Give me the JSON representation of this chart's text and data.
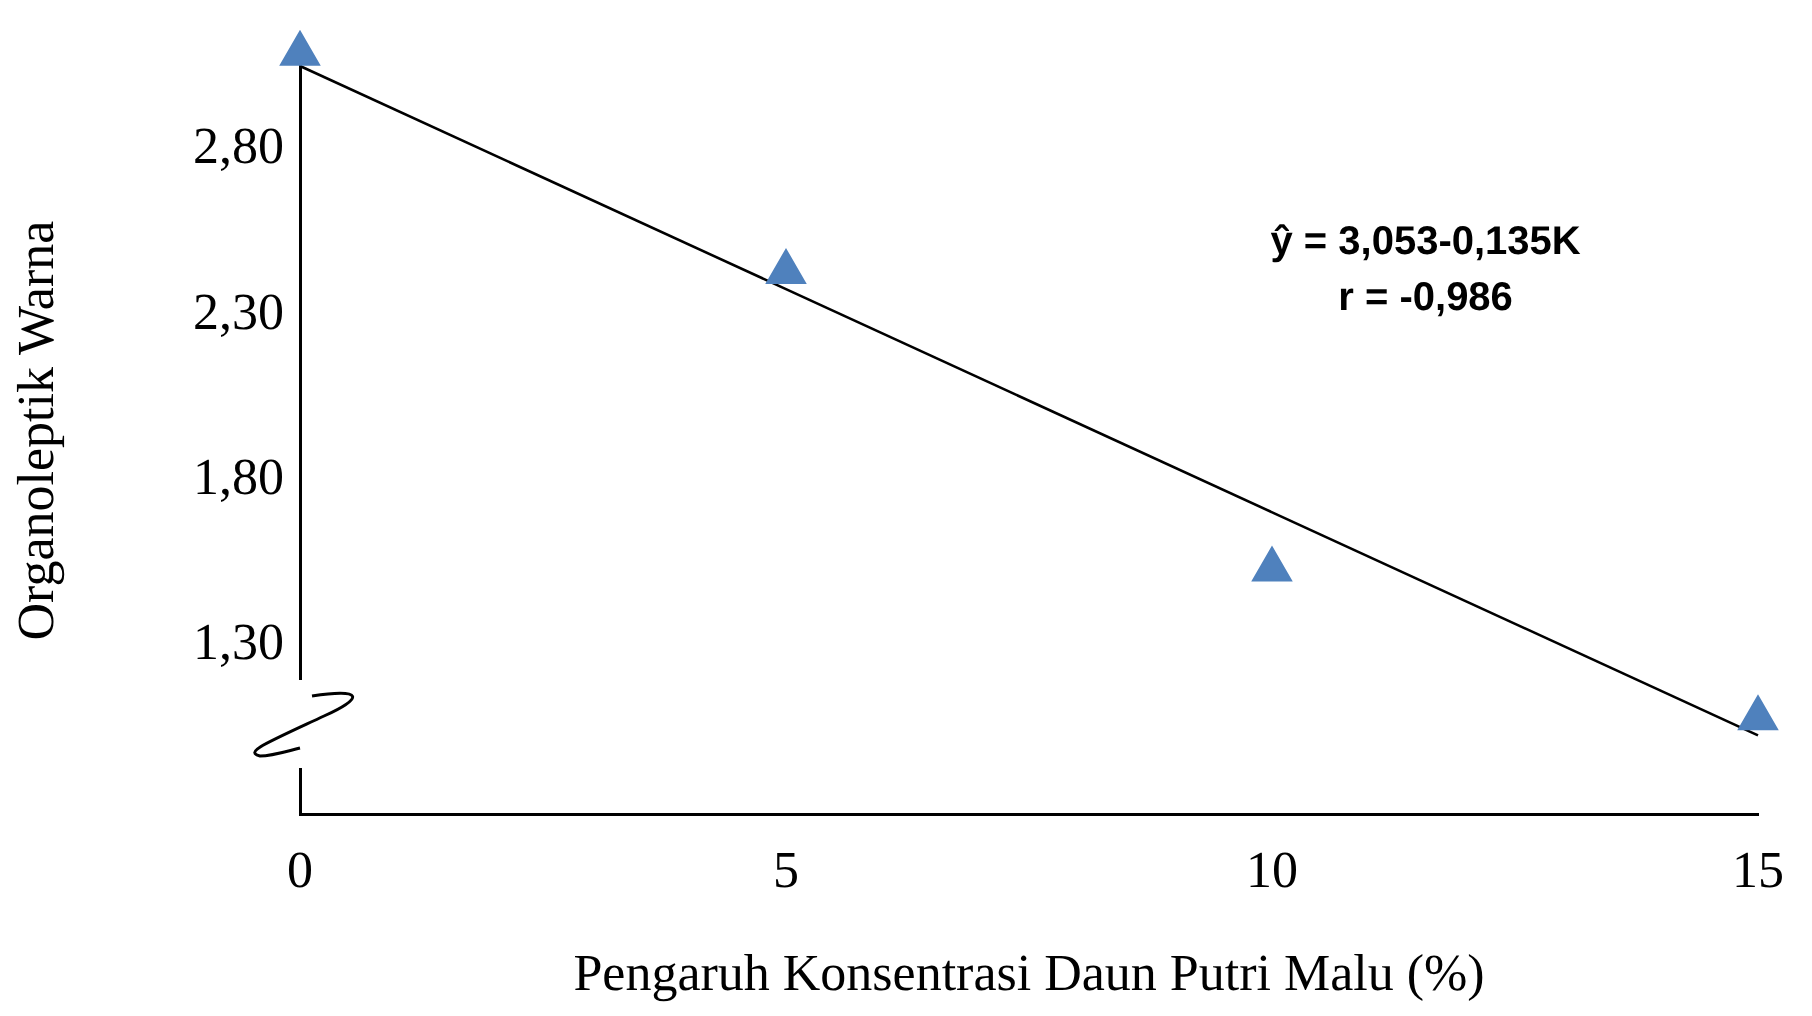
{
  "chart_data": {
    "type": "scatter",
    "xlabel": "Pengaruh Konsentrasi Daun Putri Malu (%)",
    "ylabel": "Organoleptik Warna",
    "x": [
      0,
      5,
      10,
      15
    ],
    "series": [
      {
        "color": "#4f81bd",
        "marker": "triangle",
        "values": [
          3.09,
          2.43,
          1.53,
          1.08
        ]
      },
      {
        "type": "line",
        "color": "#000000",
        "marker": "none",
        "x": [
          0,
          15
        ],
        "values": [
          3.053,
          1.028
        ]
      }
    ],
    "xlim": [
      0,
      15
    ],
    "xticks": [
      0,
      5,
      10,
      15
    ],
    "ylim": [
      0.79,
      3.11
    ],
    "yticks": [
      {
        "value": 1.3,
        "label": "1,30"
      },
      {
        "value": 1.8,
        "label": "1,80"
      },
      {
        "value": 2.3,
        "label": "2,30"
      },
      {
        "value": 2.8,
        "label": "2,80"
      }
    ],
    "annotations": [
      "ŷ = 3,053-0,135K",
      "r = -0,986"
    ],
    "grid": false,
    "legend": false
  }
}
